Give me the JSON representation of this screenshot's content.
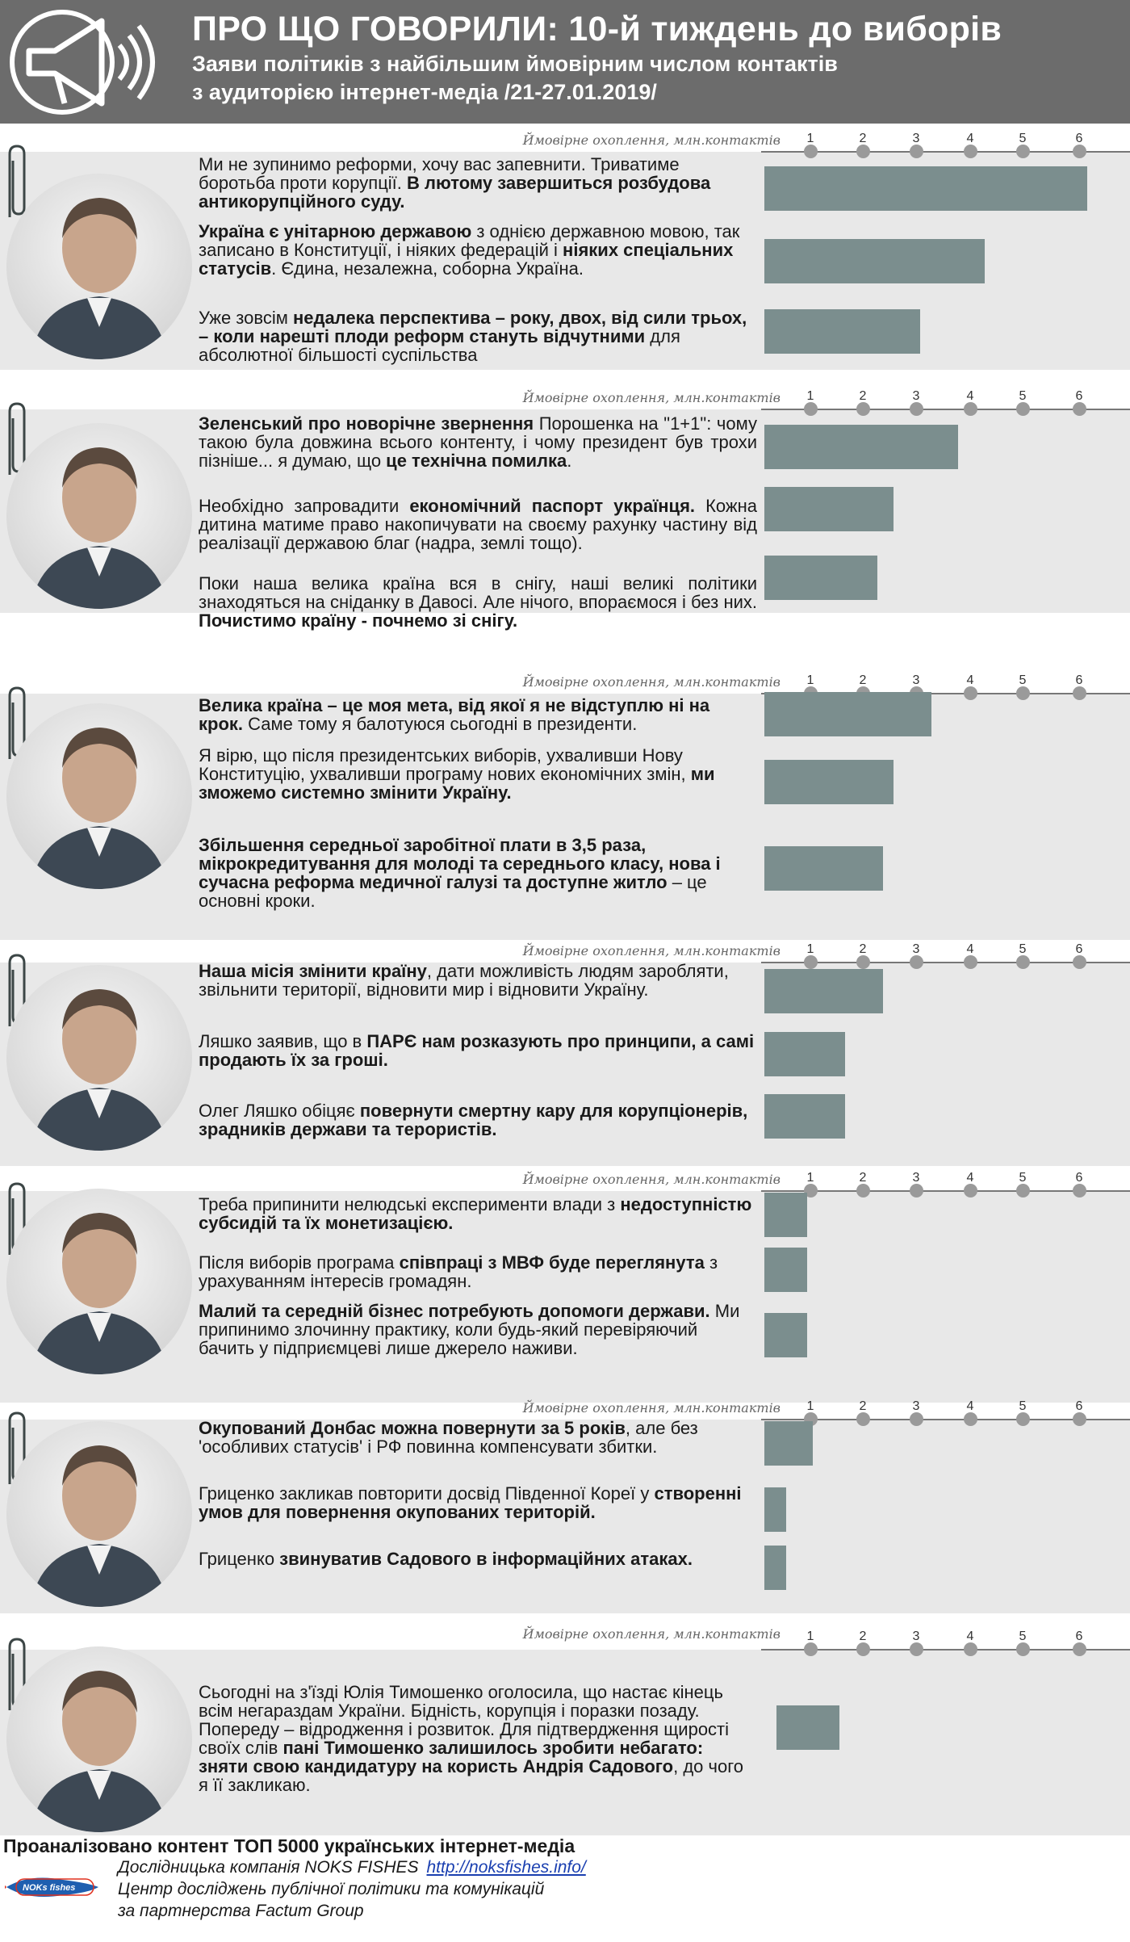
{
  "header": {
    "title": "ПРО ЩО ГОВОРИЛИ: 10-й тиждень до виборів",
    "subtitle_line1": "Заяви політиків з найбільшим ймовірним числом контактів",
    "subtitle_line2": "з аудиторією інтернет-медіа /21-27.01.2019/"
  },
  "axis": {
    "title": "Ймовірне охоплення, млн.контактів",
    "ticks": [
      "1",
      "2",
      "3",
      "4",
      "5",
      "6"
    ]
  },
  "colors": {
    "header": "#6c6c6c",
    "section_bg": "#e8e8e8",
    "bar": "#7b8e8e",
    "tick_dot": "#9a9a9a"
  },
  "icons": {
    "logo": "megaphone-icon",
    "clip": "paperclip-icon"
  },
  "sections": [
    {
      "photo": "politician-photo",
      "statements": [
        {
          "parts": [
            {
              "t": "Ми не зупинимо реформи, хочу вас запевнити. Триватиме боротьба проти корупції. ",
              "b": false
            },
            {
              "t": "В лютому завершиться розбудова антикорупційного суду.",
              "b": true
            }
          ]
        },
        {
          "parts": [
            {
              "t": "Україна є унітарною державою",
              "b": true
            },
            {
              "t": " з однією державною мовою, так записано в Конституції, і ніяких федерацій і ",
              "b": false
            },
            {
              "t": "ніяких спеціальних статусів",
              "b": true
            },
            {
              "t": ". Єдина, незалежна, соборна Україна.",
              "b": false
            }
          ]
        },
        {
          "parts": [
            {
              "t": "Уже зовсім ",
              "b": false
            },
            {
              "t": "недалека перспектива – року, двох, від сили трьох, – коли нарешті плоди реформ стануть відчутними",
              "b": true
            },
            {
              "t": " для абсолютної більшості суспільства",
              "b": false
            }
          ]
        }
      ]
    },
    {
      "photo": "politician-photo",
      "statements": [
        {
          "parts": [
            {
              "t": "Зеленський про новорічне звернення",
              "b": true
            },
            {
              "t": " Порошенка на \"1+1\": чому такою була довжина всього контенту, і чому президент був трохи пізніше... я думаю, що ",
              "b": false
            },
            {
              "t": "це технічна помилка",
              "b": true
            },
            {
              "t": ".",
              "b": false
            }
          ]
        },
        {
          "parts": [
            {
              "t": "Необхідно запровадити ",
              "b": false
            },
            {
              "t": "економічний паспорт українця.",
              "b": true
            },
            {
              "t": " Кожна дитина матиме право накопичувати на своєму рахунку частину від реалізації державою благ (надра, землі тощо).",
              "b": false
            }
          ]
        },
        {
          "parts": [
            {
              "t": "Поки наша велика країна вся в снігу, наші великі політики знаходяться на сніданку в Давосі. Але нічого, впораємося і без них. ",
              "b": false
            },
            {
              "t": "Почистимо країну - почнемо зі снігу.",
              "b": true
            }
          ]
        }
      ]
    },
    {
      "photo": "politician-photo",
      "statements": [
        {
          "parts": [
            {
              "t": "Велика країна – це моя мета, від якої я не відступлю ні на крок.",
              "b": true
            },
            {
              "t": " Саме тому я балотуюся сьогодні в президенти.",
              "b": false
            }
          ]
        },
        {
          "parts": [
            {
              "t": "Я вірю, що після президентських виборів, ухваливши Нову Конституцію, ухваливши програму нових економічних змін, ",
              "b": false
            },
            {
              "t": "ми зможемо системно змінити Україну.",
              "b": true
            }
          ]
        },
        {
          "parts": [
            {
              "t": "Збільшення середньої заробітної плати в 3,5 раза, мікрокредитування для молоді та середнього класу, нова і сучасна реформа медичної галузі та доступне житло",
              "b": true
            },
            {
              "t": " – це основні кроки.",
              "b": false
            }
          ]
        }
      ]
    },
    {
      "photo": "politician-photo",
      "statements": [
        {
          "parts": [
            {
              "t": "Наша місія змінити країну",
              "b": true
            },
            {
              "t": ", дати можливість людям заробляти, звільнити території, відновити мир і відновити Україну.",
              "b": false
            }
          ]
        },
        {
          "parts": [
            {
              "t": "Ляшко заявив, що в ",
              "b": false
            },
            {
              "t": "ПАРЄ нам розказують про принципи, а самі продають їх за гроші.",
              "b": true
            }
          ]
        },
        {
          "parts": [
            {
              "t": "Олег Ляшко обіцяє ",
              "b": false
            },
            {
              "t": "повернути смертну кару для корупціонерів, зрадників держави та терористів.",
              "b": true
            }
          ]
        }
      ]
    },
    {
      "photo": "politician-photo",
      "statements": [
        {
          "parts": [
            {
              "t": "Треба припинити нелюдські експерименти влади з ",
              "b": false
            },
            {
              "t": "недоступністю субсидій та їх монетизацією.",
              "b": true
            }
          ]
        },
        {
          "parts": [
            {
              "t": "Після виборів програма ",
              "b": false
            },
            {
              "t": "співпраці з МВФ буде переглянута",
              "b": true
            },
            {
              "t": " з урахуванням інтересів громадян.",
              "b": false
            }
          ]
        },
        {
          "parts": [
            {
              "t": "Малий та середній бізнес потребують допомоги держави.",
              "b": true
            },
            {
              "t": " Ми припинимо злочинну практику, коли будь-який перевіряючий бачить у підприємцеві лише джерело наживи.",
              "b": false
            }
          ]
        }
      ]
    },
    {
      "photo": "politician-photo",
      "statements": [
        {
          "parts": [
            {
              "t": "Окупований Донбас можна повернути за 5 років",
              "b": true
            },
            {
              "t": ", але без 'особливих статусів' і РФ повинна компенсувати збитки.",
              "b": false
            }
          ]
        },
        {
          "parts": [
            {
              "t": "Гриценко закликав повторити досвід Південної Кореї у ",
              "b": false
            },
            {
              "t": "створенні умов для повернення окупованих територій.",
              "b": true
            }
          ]
        },
        {
          "parts": [
            {
              "t": "Гриценко ",
              "b": false
            },
            {
              "t": "звинуватив Садового в інформаційних атаках.",
              "b": true
            }
          ]
        }
      ]
    },
    {
      "photo": "politician-photo",
      "statements": [
        {
          "parts": [
            {
              "t": "Сьогодні на з'їзді Юлія Тимошенко оголосила, що настає кінець всім негараздам України. Бідність, корупція і поразки позаду. Попереду – відродження і розвиток. Для підтвердження щирості своїх слів ",
              "b": false
            },
            {
              "t": "пані Тимошенко залишилось зробити небагато: зняти свою кандидатуру на користь Андрія Садового",
              "b": true
            },
            {
              "t": ", до чого я її закликаю.",
              "b": false
            }
          ]
        }
      ]
    }
  ],
  "chart_data": {
    "type": "bar",
    "orientation": "horizontal",
    "xlabel": "Ймовірне охоплення, млн.контактів",
    "xlim": [
      0,
      6
    ],
    "xticks": [
      1,
      2,
      3,
      4,
      5,
      6
    ],
    "series": [
      {
        "values": [
          6.0,
          4.1,
          2.9
        ]
      },
      {
        "values": [
          3.6,
          2.4,
          2.1
        ]
      },
      {
        "values": [
          3.1,
          2.4,
          2.2
        ]
      },
      {
        "values": [
          2.2,
          1.5,
          1.5
        ]
      },
      {
        "values": [
          0.8,
          0.8,
          0.8
        ]
      },
      {
        "values": [
          0.9,
          0.4,
          0.4
        ]
      },
      {
        "values": [
          1.4
        ]
      }
    ]
  },
  "footer": {
    "line1": "Проаналізовано контент ТОП 5000 українських інтернет-медіа",
    "line2": "Дослідницька компанія NOKS FISHES",
    "link": "http://noksfishes.info/",
    "line3": "Центр досліджень публічної політики та комунікацій",
    "line4": "за партнерства Factum Group",
    "logo_text": "NOKs fishes"
  }
}
